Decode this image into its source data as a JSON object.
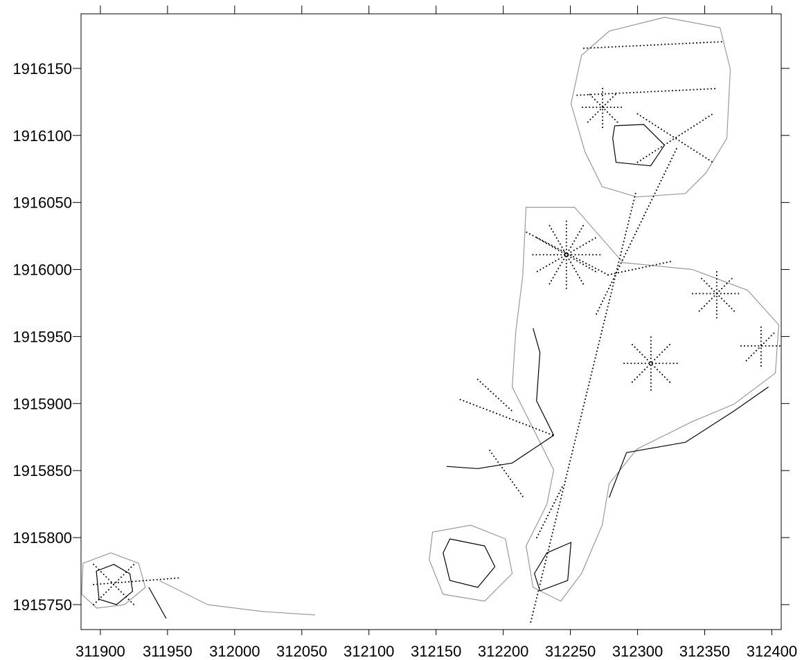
{
  "chart_data": {
    "type": "contour",
    "xlim": [
      311885.6,
      312407
    ],
    "ylim": [
      1915731.4,
      1916190.7
    ],
    "xticks": [
      311900,
      311950,
      312000,
      312050,
      312100,
      312150,
      312200,
      312250,
      312300,
      312350,
      312400
    ],
    "yticks": [
      1915750,
      1915800,
      1915850,
      1915900,
      1915950,
      1916000,
      1916050,
      1916100,
      1916150
    ],
    "contours": [
      {
        "color": "#999999",
        "closed": true,
        "x": [
          312258.3,
          312278.9,
          312320.1,
          312361.4,
          312369.1,
          312366.5,
          312351.1,
          312335.6,
          312299.5,
          312273.7,
          312260.9,
          312250.5
        ],
        "y": [
          1916159.8,
          1916177.8,
          1916188.1,
          1916180.4,
          1916149.5,
          1916097.9,
          1916072.2,
          1916056.7,
          1916054.1,
          1916061.8,
          1916087.6,
          1916123.7
        ]
      },
      {
        "color": "#000000",
        "closed": true,
        "x": [
          312283,
          312304.7,
          312320.1,
          312309.8,
          312284,
          312281.5
        ],
        "y": [
          1916107.2,
          1916108.2,
          1916092.8,
          1916077.3,
          1916079.9,
          1916097.9
        ]
      },
      {
        "color": "#999999",
        "closed": true,
        "x": [
          312217,
          312253.1,
          312289.2,
          312340.8,
          312382,
          312405.2,
          312402.6,
          312371.7,
          312340.8,
          312299.5,
          312278.9,
          312273.7,
          312258.3,
          312242.8,
          312222.2,
          312217,
          312232.5,
          312237.6,
          312222.2,
          312206.7,
          312209.3,
          312214.5
        ],
        "y": [
          1916046.4,
          1916046.4,
          1916005.1,
          1916000,
          1915984.5,
          1915958.7,
          1915922.7,
          1915899.5,
          1915886.6,
          1915866,
          1915840.2,
          1915809.3,
          1915773.2,
          1915752.6,
          1915762.9,
          1915793.8,
          1915824.7,
          1915850.5,
          1915881.4,
          1915912.4,
          1915953.6,
          1915994.8
        ]
      },
      {
        "color": "#000000",
        "closed": false,
        "x": [
          312278.9,
          312291.8,
          312335.6,
          312371.7,
          312397.5
        ],
        "y": [
          1915829.9,
          1915863.4,
          1915871.1,
          1915894.3,
          1915912.4
        ]
      },
      {
        "color": "#000000",
        "closed": false,
        "x": [
          312222.2,
          312227.3,
          312224.8,
          312237.6,
          312206.7,
          312181,
          312157.8
        ],
        "y": [
          1915956.2,
          1915938.1,
          1915902,
          1915876.3,
          1915855.6,
          1915851.5,
          1915853.1
        ]
      },
      {
        "color": "#999999",
        "closed": true,
        "x": [
          312147.4,
          312175.8,
          312201.6,
          312206.7,
          312186.1,
          312155.2,
          312144.9
        ],
        "y": [
          1915804.1,
          1915809.3,
          1915799,
          1915773.2,
          1915752.6,
          1915757.7,
          1915783.5
        ]
      },
      {
        "color": "#000000",
        "closed": true,
        "x": [
          312160.3,
          312186.1,
          312193.8,
          312181,
          312160.3,
          312155.2
        ],
        "y": [
          1915799,
          1915793.8,
          1915778.3,
          1915762.9,
          1915768,
          1915788.6
        ]
      },
      {
        "color": "#000000",
        "closed": true,
        "x": [
          312232.5,
          312250.5,
          312248,
          312227.3,
          312223.2
        ],
        "y": [
          1915788.6,
          1915796.4,
          1915768,
          1915760.3,
          1915773.2
        ]
      },
      {
        "color": "#999999",
        "closed": true,
        "x": [
          311887.1,
          311907.7,
          311928.4,
          311933.5,
          311918,
          311897.4,
          311886.1
        ],
        "y": [
          1915780.9,
          1915788.6,
          1915780.9,
          1915762.9,
          1915750,
          1915747.4,
          1915757.7
        ]
      },
      {
        "color": "#000000",
        "closed": true,
        "x": [
          311897,
          311910,
          311922,
          311924,
          311912,
          311899
        ],
        "y": [
          1915775,
          1915780,
          1915773,
          1915760,
          1915750,
          1915754
        ]
      },
      {
        "color": "#999999",
        "closed": false,
        "x": [
          311943.8,
          311979.9,
          312021.1,
          312059.8
        ],
        "y": [
          1915768,
          1915750,
          1915744.8,
          1915742.3
        ]
      },
      {
        "color": "#000000",
        "closed": false,
        "x": [
          311936.1,
          311949
        ],
        "y": [
          1915762.9,
          1915739.7
        ]
      }
    ],
    "transect_color": "#000000",
    "transects": [
      {
        "x": [
          312222,
          312272
        ],
        "y": [
          1916011,
          1916011
        ]
      },
      {
        "x": [
          312225.3,
          312268.7
        ],
        "y": [
          1915998.5,
          1916023.5
        ]
      },
      {
        "x": [
          312234.5,
          312259.5
        ],
        "y": [
          1915989.3,
          1916032.7
        ]
      },
      {
        "x": [
          312247,
          312247
        ],
        "y": [
          1915986,
          1916036
        ]
      },
      {
        "x": [
          312259.5,
          312234.5
        ],
        "y": [
          1915989.3,
          1916032.7
        ]
      },
      {
        "x": [
          312268.7,
          312225.3
        ],
        "y": [
          1915998.5,
          1916023.5
        ]
      },
      {
        "x": [
          312278,
          312325
        ],
        "y": [
          1915996,
          1916006
        ]
      },
      {
        "x": [
          312278,
          312217
        ],
        "y": [
          1915996,
          1916028
        ]
      },
      {
        "x": [
          312298.5,
          312220
        ],
        "y": [
          1916056.7,
          1915735
        ]
      },
      {
        "x": [
          312329,
          312269
        ],
        "y": [
          1916090,
          1915966
        ]
      },
      {
        "x": [
          312290,
          312330
        ],
        "y": [
          1915930,
          1915930
        ]
      },
      {
        "x": [
          312296,
          312324
        ],
        "y": [
          1915916,
          1915944
        ]
      },
      {
        "x": [
          312310,
          312310
        ],
        "y": [
          1915910,
          1915950
        ]
      },
      {
        "x": [
          312324,
          312296
        ],
        "y": [
          1915916,
          1915944
        ]
      },
      {
        "x": [
          312341,
          312377
        ],
        "y": [
          1915982,
          1915982
        ]
      },
      {
        "x": [
          312346,
          312372
        ],
        "y": [
          1915969,
          1915995
        ]
      },
      {
        "x": [
          312359,
          312359
        ],
        "y": [
          1915964,
          1916000
        ]
      },
      {
        "x": [
          312372,
          312346
        ],
        "y": [
          1915969,
          1915995
        ]
      },
      {
        "x": [
          312259,
          312289
        ],
        "y": [
          1916121,
          1916121
        ]
      },
      {
        "x": [
          312274,
          312274
        ],
        "y": [
          1916106,
          1916136
        ]
      },
      {
        "x": [
          312263,
          312285
        ],
        "y": [
          1916110,
          1916132
        ]
      },
      {
        "x": [
          312285,
          312263
        ],
        "y": [
          1916110,
          1916132
        ]
      },
      {
        "x": [
          312300,
          312356
        ],
        "y": [
          1916080,
          1916116
        ]
      },
      {
        "x": [
          312300,
          312356
        ],
        "y": [
          1916116,
          1916080
        ]
      },
      {
        "x": [
          312260,
          312365
        ],
        "y": [
          1916165,
          1916170
        ]
      },
      {
        "x": [
          312255,
          312360
        ],
        "y": [
          1916130,
          1916135
        ]
      },
      {
        "x": [
          312377,
          312407
        ],
        "y": [
          1915943,
          1915943
        ]
      },
      {
        "x": [
          312392,
          312392
        ],
        "y": [
          1915928,
          1915958
        ]
      },
      {
        "x": [
          312381,
          312403
        ],
        "y": [
          1915932,
          1915954
        ]
      },
      {
        "x": [
          312168,
          312238
        ],
        "y": [
          1915903,
          1915876
        ]
      },
      {
        "x": [
          312181,
          312207
        ],
        "y": [
          1915918,
          1915894
        ]
      },
      {
        "x": [
          312190,
          312215
        ],
        "y": [
          1915865,
          1915830
        ]
      },
      {
        "x": [
          312225,
          312245
        ],
        "y": [
          1915800,
          1915840
        ]
      },
      {
        "x": [
          311895,
          311925
        ],
        "y": [
          1915780,
          1915750
        ]
      },
      {
        "x": [
          311895,
          311925
        ],
        "y": [
          1915750,
          1915780
        ]
      },
      {
        "x": [
          311895,
          311960
        ],
        "y": [
          1915765,
          1915770
        ]
      }
    ]
  }
}
